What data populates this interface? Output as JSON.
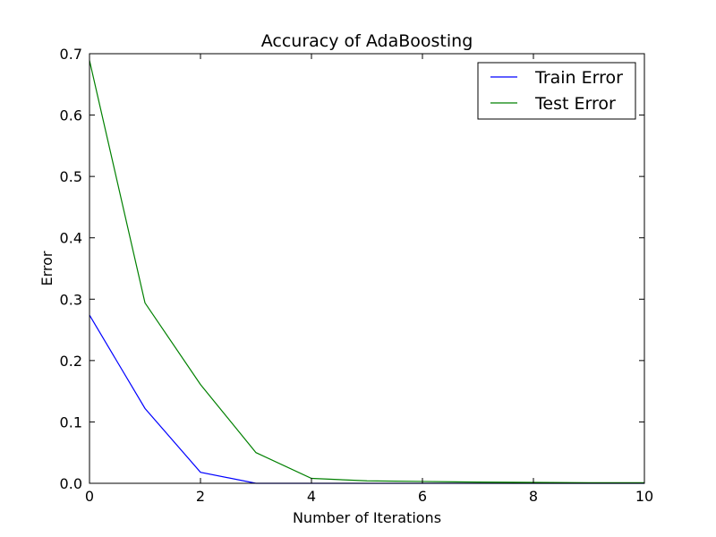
{
  "chart_data": {
    "type": "line",
    "title": "Accuracy of AdaBoosting",
    "xlabel": "Number of Iterations",
    "ylabel": "Error",
    "xlim": [
      0,
      10
    ],
    "ylim": [
      0,
      0.7
    ],
    "xticks": [
      0,
      2,
      4,
      6,
      8,
      10
    ],
    "yticks": [
      0.0,
      0.1,
      0.2,
      0.3,
      0.4,
      0.5,
      0.6,
      0.7
    ],
    "xtick_labels": [
      "0",
      "2",
      "4",
      "6",
      "8",
      "10"
    ],
    "ytick_labels": [
      "0.0",
      "0.1",
      "0.2",
      "0.3",
      "0.4",
      "0.5",
      "0.6",
      "0.7"
    ],
    "grid": false,
    "legend_position": "top-right",
    "x": [
      0,
      1,
      2,
      3,
      4,
      5,
      6,
      7,
      8,
      9,
      10
    ],
    "series": [
      {
        "name": "Train Error",
        "color": "#0000ff",
        "values": [
          0.274,
          0.122,
          0.018,
          0.0,
          0.0,
          0.0,
          0.0,
          0.0,
          0.0,
          0.0,
          0.0
        ]
      },
      {
        "name": "Test Error",
        "color": "#008000",
        "values": [
          0.689,
          0.294,
          0.161,
          0.05,
          0.008,
          0.004,
          0.003,
          0.002,
          0.0015,
          0.001,
          0.001
        ]
      }
    ]
  }
}
